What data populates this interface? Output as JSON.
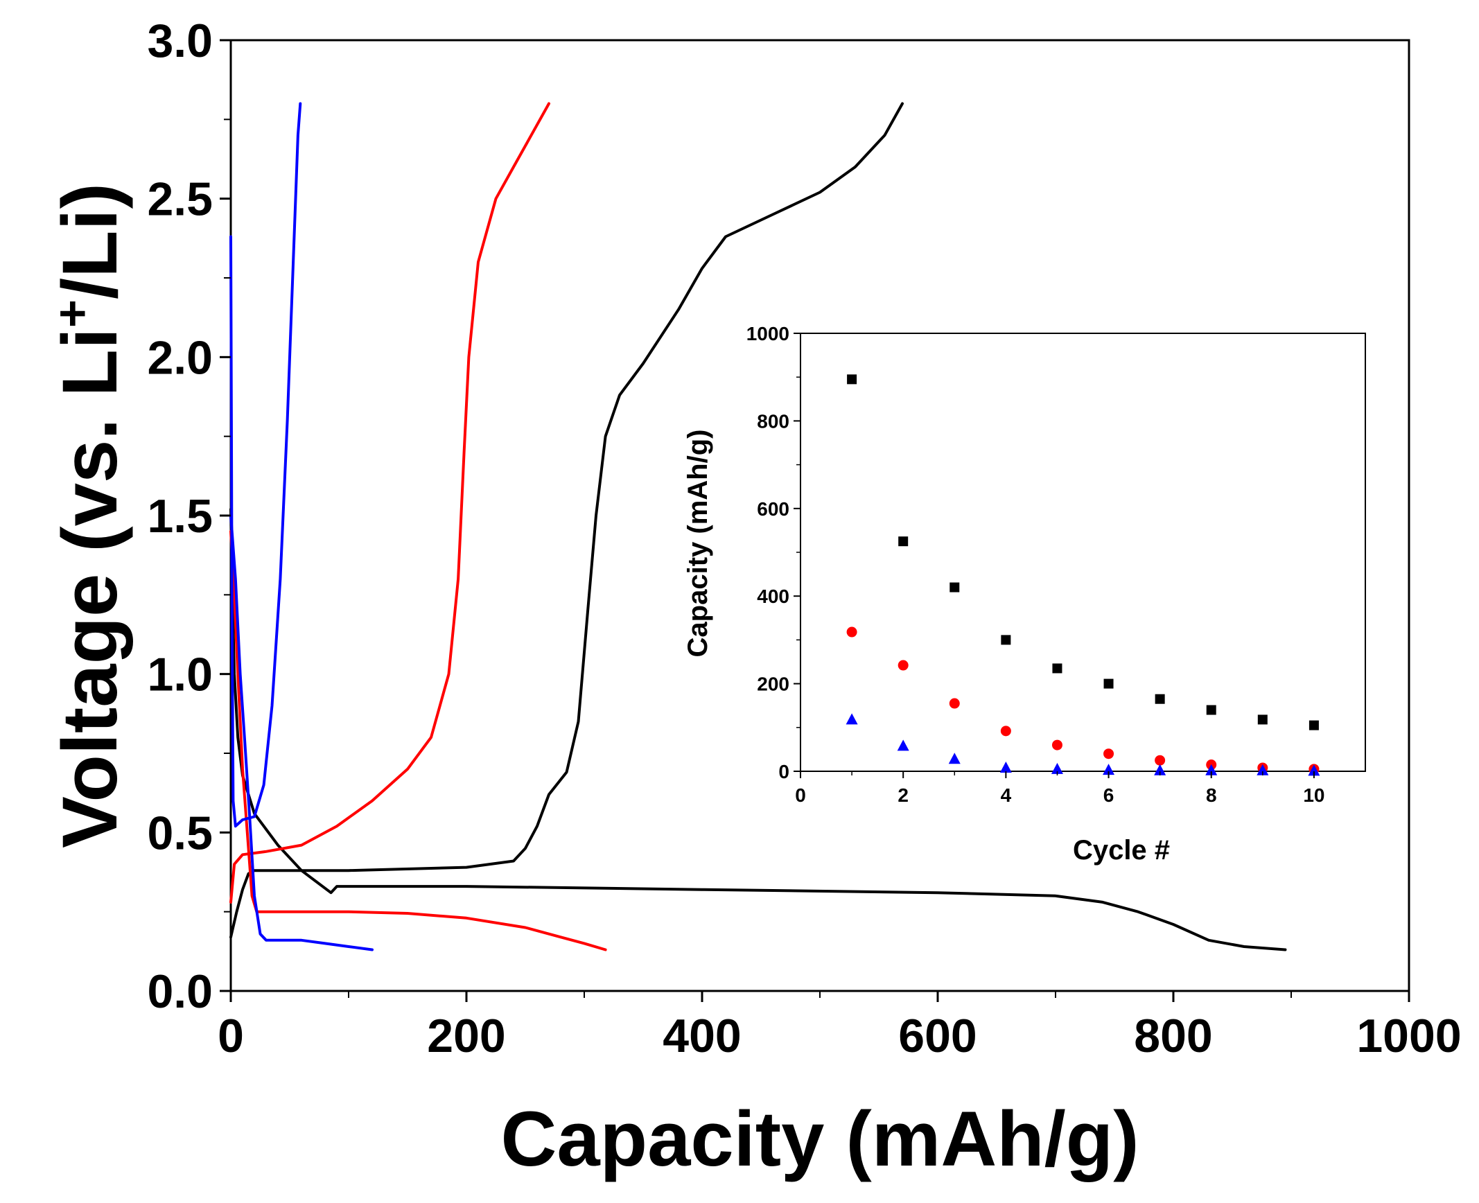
{
  "chart_data": [
    {
      "id": "main",
      "type": "line",
      "title": "",
      "xlabel": "Capacity (mAh/g)",
      "ylabel_parts": [
        "Voltage (vs. Li",
        "+",
        "/Li)"
      ],
      "xlim": [
        0,
        1000
      ],
      "ylim": [
        0,
        3.0
      ],
      "xticks": [
        0,
        200,
        400,
        600,
        800,
        1000
      ],
      "xtick_labels": [
        "0",
        "200",
        "400",
        "600",
        "800",
        "1000"
      ],
      "yticks": [
        0,
        0.5,
        1.0,
        1.5,
        2.0,
        2.5,
        3.0
      ],
      "ytick_labels": [
        "0.0",
        "0.5",
        "1.0",
        "1.5",
        "2.0",
        "2.5",
        "3.0"
      ],
      "grid": false,
      "series": [
        {
          "name": "black discharge",
          "color": "#000000",
          "points": [
            [
              0,
              1.52
            ],
            [
              1,
              1.3
            ],
            [
              3,
              1.0
            ],
            [
              6,
              0.8
            ],
            [
              10,
              0.68
            ],
            [
              20,
              0.56
            ],
            [
              40,
              0.46
            ],
            [
              60,
              0.38
            ],
            [
              85,
              0.31
            ],
            [
              90,
              0.33
            ],
            [
              200,
              0.33
            ],
            [
              400,
              0.32
            ],
            [
              600,
              0.31
            ],
            [
              700,
              0.3
            ],
            [
              740,
              0.28
            ],
            [
              770,
              0.25
            ],
            [
              800,
              0.21
            ],
            [
              830,
              0.16
            ],
            [
              860,
              0.14
            ],
            [
              895,
              0.13
            ]
          ]
        },
        {
          "name": "black charge",
          "color": "#000000",
          "points": [
            [
              0,
              0.17
            ],
            [
              5,
              0.25
            ],
            [
              10,
              0.32
            ],
            [
              15,
              0.37
            ],
            [
              20,
              0.38
            ],
            [
              100,
              0.38
            ],
            [
              200,
              0.39
            ],
            [
              240,
              0.41
            ],
            [
              250,
              0.45
            ],
            [
              260,
              0.52
            ],
            [
              270,
              0.62
            ],
            [
              285,
              0.69
            ],
            [
              295,
              0.85
            ],
            [
              303,
              1.2
            ],
            [
              310,
              1.5
            ],
            [
              318,
              1.75
            ],
            [
              330,
              1.88
            ],
            [
              350,
              1.98
            ],
            [
              380,
              2.15
            ],
            [
              400,
              2.28
            ],
            [
              420,
              2.38
            ],
            [
              460,
              2.45
            ],
            [
              500,
              2.52
            ],
            [
              530,
              2.6
            ],
            [
              555,
              2.7
            ],
            [
              570,
              2.8
            ]
          ]
        },
        {
          "name": "red discharge",
          "color": "#ff0000",
          "points": [
            [
              0,
              1.45
            ],
            [
              3,
              1.25
            ],
            [
              6,
              1.0
            ],
            [
              10,
              0.7
            ],
            [
              14,
              0.5
            ],
            [
              18,
              0.3
            ],
            [
              22,
              0.25
            ],
            [
              60,
              0.25
            ],
            [
              100,
              0.25
            ],
            [
              150,
              0.245
            ],
            [
              200,
              0.23
            ],
            [
              250,
              0.2
            ],
            [
              280,
              0.17
            ],
            [
              300,
              0.15
            ],
            [
              318,
              0.13
            ]
          ]
        },
        {
          "name": "red charge",
          "color": "#ff0000",
          "points": [
            [
              0,
              0.28
            ],
            [
              3,
              0.4
            ],
            [
              10,
              0.43
            ],
            [
              30,
              0.44
            ],
            [
              60,
              0.46
            ],
            [
              90,
              0.52
            ],
            [
              120,
              0.6
            ],
            [
              150,
              0.7
            ],
            [
              170,
              0.8
            ],
            [
              185,
              1.0
            ],
            [
              193,
              1.3
            ],
            [
              198,
              1.7
            ],
            [
              202,
              2.0
            ],
            [
              210,
              2.3
            ],
            [
              225,
              2.5
            ],
            [
              240,
              2.6
            ],
            [
              255,
              2.7
            ],
            [
              270,
              2.8
            ]
          ]
        },
        {
          "name": "blue discharge",
          "color": "#0000ff",
          "points": [
            [
              0,
              1.5
            ],
            [
              4,
              1.3
            ],
            [
              8,
              1.0
            ],
            [
              12,
              0.78
            ],
            [
              16,
              0.55
            ],
            [
              20,
              0.3
            ],
            [
              25,
              0.18
            ],
            [
              30,
              0.16
            ],
            [
              40,
              0.16
            ],
            [
              60,
              0.16
            ],
            [
              80,
              0.15
            ],
            [
              100,
              0.14
            ],
            [
              120,
              0.13
            ]
          ]
        },
        {
          "name": "blue charge",
          "color": "#0000ff",
          "points": [
            [
              0,
              2.38
            ],
            [
              0.5,
              1.8
            ],
            [
              1,
              1.2
            ],
            [
              2,
              0.6
            ],
            [
              4,
              0.52
            ],
            [
              10,
              0.54
            ],
            [
              20,
              0.55
            ],
            [
              28,
              0.65
            ],
            [
              35,
              0.9
            ],
            [
              42,
              1.3
            ],
            [
              48,
              1.8
            ],
            [
              53,
              2.3
            ],
            [
              57,
              2.7
            ],
            [
              59,
              2.8
            ]
          ]
        }
      ]
    },
    {
      "id": "inset",
      "type": "scatter",
      "title": "",
      "xlabel": "Cycle #",
      "ylabel": "Capacity (mAh/g)",
      "xlim": [
        0,
        11
      ],
      "ylim": [
        0,
        1000
      ],
      "xticks": [
        0,
        2,
        4,
        6,
        8,
        10
      ],
      "xtick_labels": [
        "0",
        "2",
        "4",
        "6",
        "8",
        "10"
      ],
      "yticks": [
        0,
        200,
        400,
        600,
        800,
        1000
      ],
      "ytick_labels": [
        "0",
        "200",
        "400",
        "600",
        "800",
        "1000"
      ],
      "grid": false,
      "series": [
        {
          "name": "black squares",
          "marker": "square",
          "color": "#000000",
          "x": [
            1,
            2,
            3,
            4,
            5,
            6,
            7,
            8,
            9,
            10
          ],
          "values": [
            895,
            525,
            420,
            300,
            235,
            200,
            165,
            140,
            118,
            105
          ]
        },
        {
          "name": "red circles",
          "marker": "circle",
          "color": "#ff0000",
          "x": [
            1,
            2,
            3,
            4,
            5,
            6,
            7,
            8,
            9,
            10
          ],
          "values": [
            318,
            242,
            155,
            92,
            60,
            40,
            25,
            15,
            8,
            5
          ]
        },
        {
          "name": "blue triangles",
          "marker": "triangle",
          "color": "#0000ff",
          "x": [
            1,
            2,
            3,
            4,
            5,
            6,
            7,
            8,
            9,
            10
          ],
          "values": [
            118,
            58,
            28,
            8,
            5,
            3,
            2,
            2,
            2,
            1
          ]
        }
      ]
    }
  ]
}
